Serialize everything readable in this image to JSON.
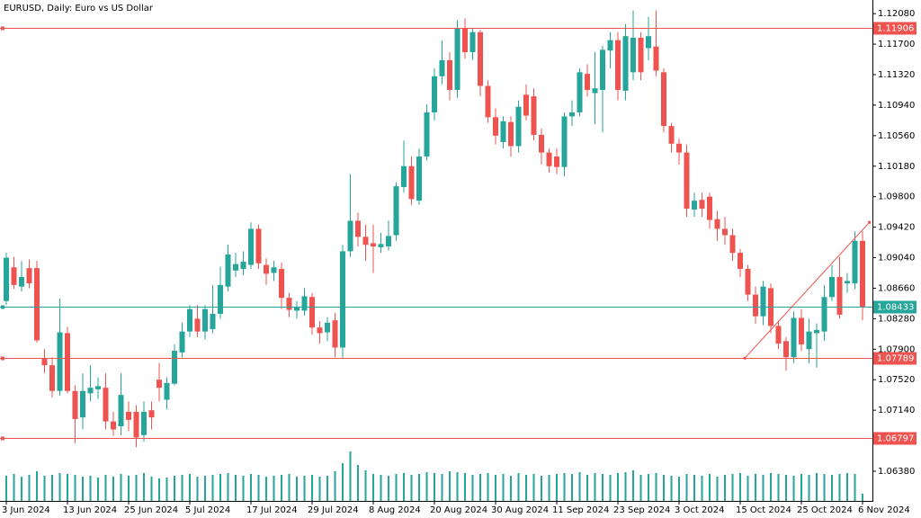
{
  "chart_data": {
    "type": "candlestick",
    "title": "EURUSD, Daily:  Euro vs US Dollar",
    "up_color": "#26a69a",
    "down_color": "#ef5350",
    "volume_color": "#26a69a",
    "categories": [
      "3 Jun 2024",
      null,
      null,
      null,
      null,
      null,
      null,
      null,
      "13 Jun 2024",
      null,
      null,
      null,
      null,
      null,
      null,
      null,
      "25 Jun 2024",
      null,
      null,
      null,
      null,
      null,
      null,
      null,
      "5 Jul 2024",
      null,
      null,
      null,
      null,
      null,
      null,
      null,
      "17 Jul 2024",
      null,
      null,
      null,
      null,
      null,
      null,
      null,
      "29 Jul 2024",
      null,
      null,
      null,
      null,
      null,
      null,
      null,
      "8 Aug 2024",
      null,
      null,
      null,
      null,
      null,
      null,
      null,
      "20 Aug 2024",
      null,
      null,
      null,
      null,
      null,
      null,
      null,
      "30 Aug 2024",
      null,
      null,
      null,
      null,
      null,
      null,
      null,
      "11 Sep 2024",
      null,
      null,
      null,
      null,
      null,
      null,
      null,
      "23 Sep 2024",
      null,
      null,
      null,
      null,
      null,
      null,
      null,
      "3 Oct 2024",
      null,
      null,
      null,
      null,
      null,
      null,
      null,
      "15 Oct 2024",
      null,
      null,
      null,
      null,
      null,
      null,
      null,
      "25 Oct 2024",
      null,
      null,
      null,
      null,
      null,
      null,
      null,
      "6 Nov 2024"
    ],
    "open": [
      1.085,
      1.0892,
      1.0868,
      1.0891,
      1.0891,
      1.0778,
      1.077,
      1.0738,
      1.081,
      1.0738,
      1.0705,
      1.0735,
      1.074,
      1.0742,
      1.07,
      1.0694,
      1.0712,
      1.0712,
      1.0683,
      1.0714,
      1.0752,
      1.0727,
      1.0747,
      1.0786,
      1.0812,
      1.0828,
      1.0812,
      1.0815,
      1.0834,
      1.0868,
      1.0888,
      1.089,
      1.0895,
      1.094,
      1.0895,
      1.0885,
      1.089,
      1.0854,
      1.0838,
      1.0838,
      1.0855,
      1.0817,
      1.0811,
      1.0826,
      1.0792,
      1.0912,
      1.095,
      1.093,
      1.0922,
      1.0917,
      1.0918,
      1.0932,
      1.0992,
      1.1018,
      1.0975,
      1.103,
      1.1085,
      1.113,
      1.115,
      1.1113,
      1.119,
      1.116,
      1.1185,
      1.1118,
      1.1079,
      1.1048,
      1.1073,
      1.1043,
      1.1107,
      1.1105,
      1.1057,
      1.1035,
      1.103,
      1.1017,
      1.108,
      1.1085,
      1.1133,
      1.1109,
      1.1113,
      1.1162,
      1.1175,
      1.1112,
      1.1135,
      1.1178,
      1.1165,
      1.1167,
      1.1135,
      1.1068,
      1.1046,
      1.1035,
      1.0964,
      1.0976,
      1.098,
      1.0952,
      1.094,
      1.0932,
      1.091,
      1.089,
      1.0858,
      1.0831,
      1.0866,
      1.0819,
      1.08,
      1.078,
      1.0829,
      1.079,
      1.081,
      1.0812,
      1.0855,
      1.088,
      1.0872,
      1.0872,
      1.0925
    ],
    "high": [
      1.091,
      1.0905,
      1.09,
      1.0902,
      1.09,
      1.079,
      1.078,
      1.0853,
      1.0818,
      1.0745,
      1.076,
      1.077,
      1.0755,
      1.076,
      1.0712,
      1.076,
      1.0725,
      1.072,
      1.0725,
      1.0725,
      1.0773,
      1.0755,
      1.0796,
      1.0823,
      1.0845,
      1.0845,
      1.0845,
      1.087,
      1.0893,
      1.092,
      1.091,
      1.0912,
      1.0948,
      1.0945,
      1.0903,
      1.09,
      1.0898,
      1.086,
      1.085,
      1.0866,
      1.086,
      1.0825,
      1.083,
      1.0835,
      1.092,
      1.1008,
      1.096,
      1.0945,
      1.0945,
      1.0935,
      1.095,
      1.0998,
      1.105,
      1.103,
      1.104,
      1.1095,
      1.114,
      1.1175,
      1.116,
      1.12,
      1.1202,
      1.119,
      1.1188,
      1.1125,
      1.109,
      1.108,
      1.108,
      1.11,
      1.112,
      1.1115,
      1.1065,
      1.104,
      1.104,
      1.1085,
      1.11,
      1.114,
      1.1145,
      1.116,
      1.1168,
      1.1185,
      1.1185,
      1.1195,
      1.1212,
      1.1185,
      1.1204,
      1.1212,
      1.114,
      1.1072,
      1.1052,
      1.1045,
      1.0985,
      1.0985,
      1.0985,
      1.0962,
      1.0955,
      1.094,
      1.0915,
      1.0895,
      1.0868,
      1.0875,
      1.0872,
      1.0825,
      1.0805,
      1.0837,
      1.084,
      1.0828,
      1.0822,
      1.087,
      1.0895,
      1.0905,
      1.0885,
      1.0937,
      1.0937
    ],
    "low": [
      1.0845,
      1.0865,
      1.0862,
      1.0866,
      1.0798,
      1.076,
      1.073,
      1.0732,
      1.0735,
      1.0673,
      1.069,
      1.0725,
      1.0728,
      1.069,
      1.0682,
      1.0683,
      1.0688,
      1.0668,
      1.0675,
      1.069,
      1.0725,
      1.0715,
      1.0745,
      1.078,
      1.0805,
      1.0805,
      1.0802,
      1.081,
      1.0828,
      1.0862,
      1.088,
      1.0882,
      1.089,
      1.089,
      1.087,
      1.0875,
      1.084,
      1.083,
      1.0828,
      1.0832,
      1.0808,
      1.0797,
      1.08,
      1.078,
      1.0778,
      1.0905,
      1.0918,
      1.09,
      1.0885,
      1.091,
      1.0913,
      1.0925,
      1.0985,
      1.097,
      1.097,
      1.1025,
      1.1075,
      1.112,
      1.11,
      1.1103,
      1.1152,
      1.115,
      1.1105,
      1.1072,
      1.1045,
      1.104,
      1.103,
      1.1035,
      1.1075,
      1.105,
      1.102,
      1.101,
      1.1008,
      1.1005,
      1.1068,
      1.108,
      1.1105,
      1.107,
      1.106,
      1.114,
      1.11,
      1.11,
      1.1125,
      1.1125,
      1.115,
      1.113,
      1.106,
      1.1035,
      1.102,
      1.0955,
      1.0955,
      1.0955,
      1.094,
      1.0925,
      1.092,
      1.09,
      1.088,
      1.085,
      1.0822,
      1.082,
      1.081,
      1.079,
      1.0763,
      1.0773,
      1.0788,
      1.0772,
      1.0767,
      1.08,
      1.085,
      1.0828,
      1.086,
      1.0865,
      1.0826
    ],
    "close": [
      1.0904,
      1.087,
      1.088,
      1.0872,
      1.0801,
      1.077,
      1.0738,
      1.0811,
      1.0738,
      1.0703,
      1.0738,
      1.0742,
      1.0744,
      1.07,
      1.069,
      1.0733,
      1.0702,
      1.068,
      1.0712,
      1.0705,
      1.0742,
      1.0748,
      1.0788,
      1.0812,
      1.084,
      1.0812,
      1.084,
      1.0834,
      1.087,
      1.0908,
      1.0896,
      1.0899,
      1.094,
      1.0897,
      1.0884,
      1.0892,
      1.0854,
      1.0839,
      1.0843,
      1.0856,
      1.0817,
      1.081,
      1.0823,
      1.0792,
      1.0912,
      1.095,
      1.093,
      1.092,
      1.0918,
      1.0921,
      1.0931,
      1.0993,
      1.1018,
      1.0977,
      1.103,
      1.1085,
      1.113,
      1.115,
      1.1113,
      1.119,
      1.116,
      1.1185,
      1.1118,
      1.1079,
      1.1056,
      1.1074,
      1.1043,
      1.1092,
      1.1081,
      1.1057,
      1.1035,
      1.1018,
      1.1017,
      1.108,
      1.1085,
      1.1135,
      1.1113,
      1.1115,
      1.1163,
      1.1175,
      1.1113,
      1.118,
      1.1178,
      1.1135,
      1.118,
      1.1137,
      1.1068,
      1.1046,
      1.1035,
      1.0965,
      1.0975,
      1.0965,
      1.0951,
      1.094,
      1.0932,
      1.091,
      1.089,
      1.0858,
      1.0831,
      1.0868,
      1.0819,
      1.0797,
      1.078,
      1.0829,
      1.0796,
      1.0812,
      1.0814,
      1.0855,
      1.088,
      1.0833,
      1.0875,
      1.0925,
      1.0843
    ],
    "volume": [
      28,
      30,
      27,
      29,
      33,
      28,
      29,
      31,
      30,
      29,
      27,
      28,
      26,
      29,
      27,
      30,
      28,
      29,
      31,
      27,
      25,
      26,
      28,
      29,
      30,
      27,
      28,
      29,
      30,
      31,
      29,
      28,
      30,
      29,
      27,
      28,
      29,
      30,
      27,
      28,
      29,
      27,
      28,
      33,
      42,
      55,
      40,
      34,
      30,
      29,
      28,
      30,
      31,
      29,
      30,
      32,
      31,
      30,
      33,
      32,
      31,
      29,
      30,
      31,
      29,
      30,
      28,
      31,
      29,
      30,
      28,
      29,
      30,
      31,
      30,
      32,
      29,
      31,
      30,
      29,
      31,
      32,
      34,
      29,
      30,
      31,
      29,
      28,
      27,
      30,
      29,
      28,
      30,
      27,
      29,
      30,
      31,
      28,
      30,
      29,
      31,
      30,
      29,
      28,
      30,
      29,
      31,
      30,
      29,
      30,
      31,
      30,
      8
    ],
    "ylim": [
      1.0601,
      1.1225
    ],
    "yticks": [
      {
        "value": 1.0638,
        "label": "1.06380"
      },
      {
        "value": 1.0714,
        "label": "1.07140"
      },
      {
        "value": 1.0752,
        "label": "1.07520"
      },
      {
        "value": 1.079,
        "label": "1.07900"
      },
      {
        "value": 1.0828,
        "label": "1.08280"
      },
      {
        "value": 1.0866,
        "label": "1.08660"
      },
      {
        "value": 1.0904,
        "label": "1.09040"
      },
      {
        "value": 1.0942,
        "label": "1.09420"
      },
      {
        "value": 1.098,
        "label": "1.09800"
      },
      {
        "value": 1.1018,
        "label": "1.10180"
      },
      {
        "value": 1.1056,
        "label": "1.10560"
      },
      {
        "value": 1.1094,
        "label": "1.10940"
      },
      {
        "value": 1.1132,
        "label": "1.11320"
      },
      {
        "value": 1.117,
        "label": "1.11700"
      },
      {
        "value": 1.1208,
        "label": "1.12080"
      }
    ],
    "levels": [
      {
        "value": 1.11906,
        "color": "#ef5350"
      },
      {
        "value": 1.07789,
        "color": "#ef5350"
      },
      {
        "value": 1.06797,
        "color": "#ef5350"
      },
      {
        "value": 1.08433,
        "color": "#26a69a"
      }
    ],
    "trendline": {
      "x": [
        96.6,
        112.9
      ],
      "y": [
        1.07789,
        1.0948
      ],
      "color": "#ef5350"
    }
  }
}
